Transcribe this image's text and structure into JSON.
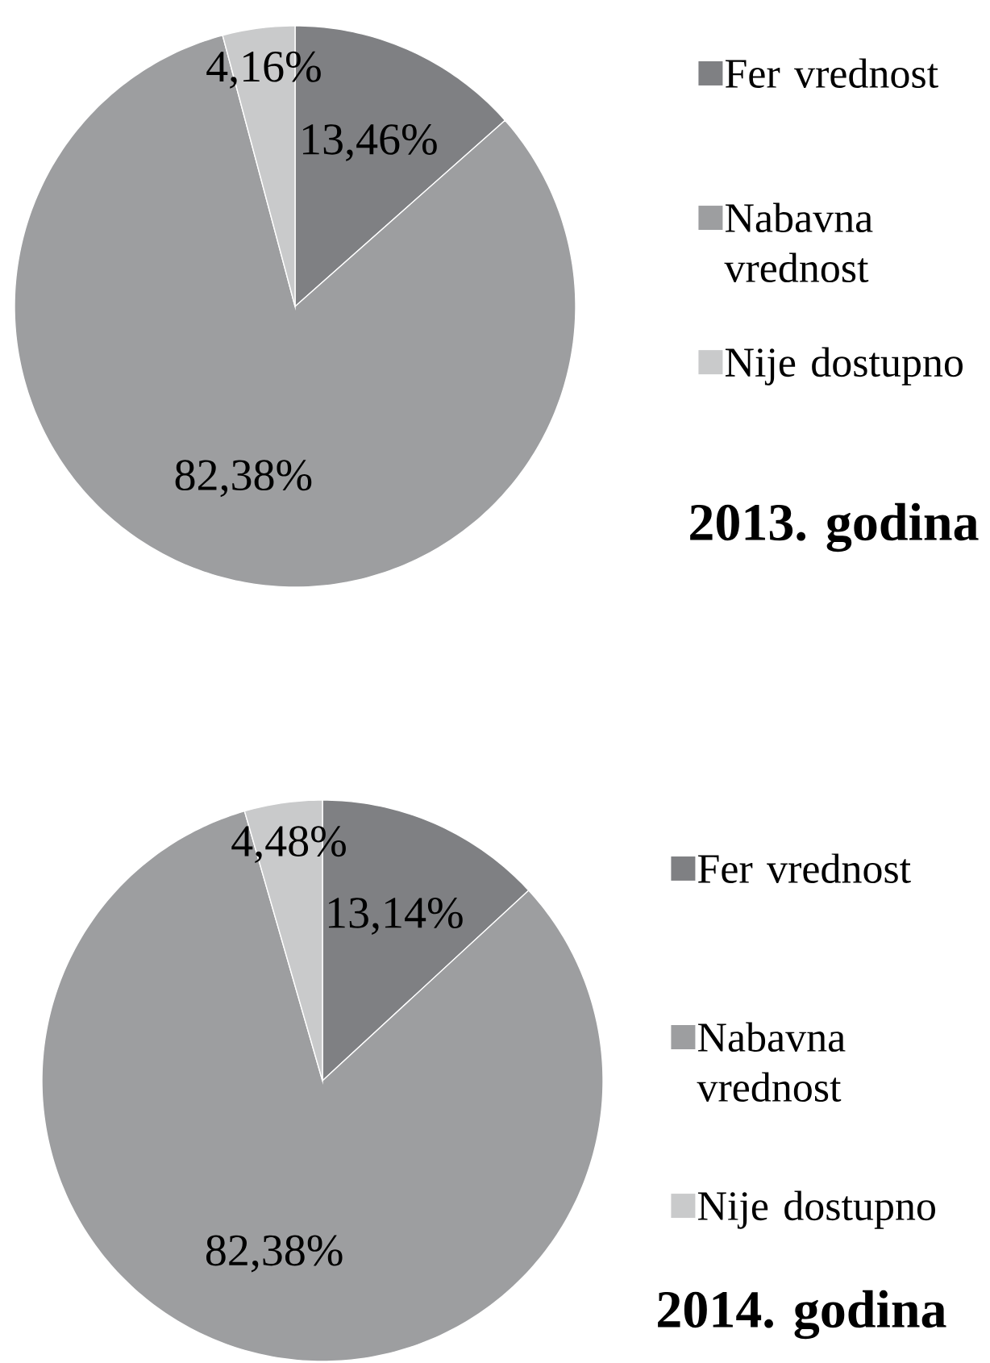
{
  "chart_data": [
    {
      "type": "pie",
      "title": "2013. godina",
      "categories": [
        "Fer vrednost",
        "Nabavna vrednost",
        "Nije dostupno"
      ],
      "values": [
        13.46,
        82.38,
        4.16
      ],
      "colors": [
        "#7f8083",
        "#9d9ea0",
        "#c9cacb"
      ],
      "value_labels": [
        "13,46%",
        "82,38%",
        "4,16%"
      ],
      "legend": "right"
    },
    {
      "type": "pie",
      "title": "2014. godina",
      "categories": [
        "Fer vrednost",
        "Nabavna vrednost",
        "Nije dostupno"
      ],
      "values": [
        13.14,
        82.38,
        4.48
      ],
      "colors": [
        "#7f8083",
        "#9d9ea0",
        "#c9cacb"
      ],
      "value_labels": [
        "13,14%",
        "82,38%",
        "4,48%"
      ],
      "legend": "right"
    }
  ]
}
